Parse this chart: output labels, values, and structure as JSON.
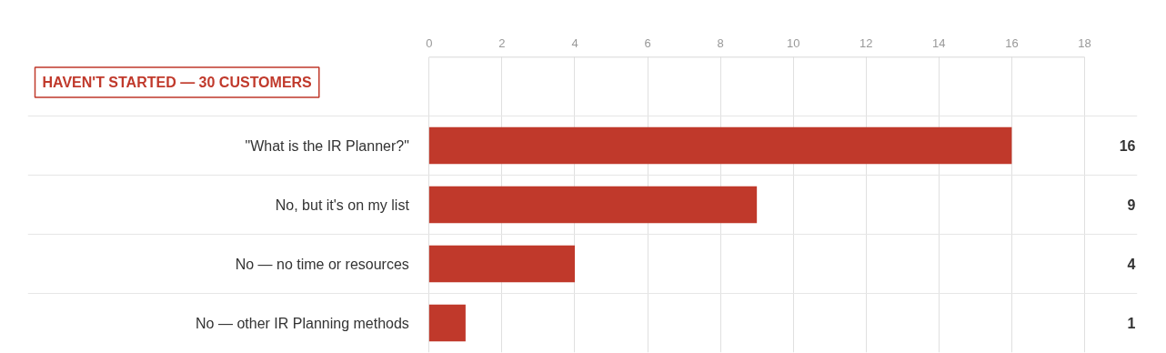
{
  "chart_data": {
    "type": "bar",
    "orientation": "horizontal",
    "title": "HAVEN'T STARTED — 30 CUSTOMERS",
    "categories": [
      "\"What is the IR Planner?\"",
      "No, but it's on my list",
      "No — no time or resources",
      "No — other IR Planning methods"
    ],
    "values": [
      16,
      9,
      4,
      1
    ],
    "color": "#c0392b",
    "xlim": [
      0,
      18
    ],
    "xticks": [
      0,
      2,
      4,
      6,
      8,
      10,
      12,
      14,
      16,
      18
    ],
    "grid": "x",
    "data_labels": true
  }
}
